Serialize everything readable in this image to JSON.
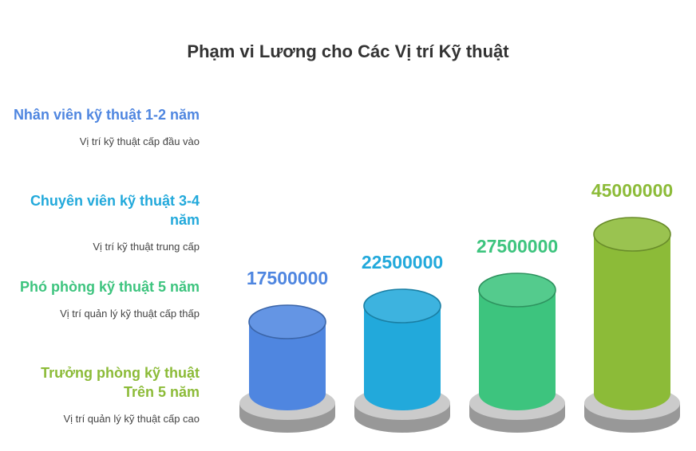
{
  "title": "Phạm vi Lương cho Các Vị trí Kỹ thuật",
  "positions": [
    {
      "name": "Nhân viên kỹ thuật 1-2 năm",
      "desc": "Vị trí kỹ thuật cấp đầu vào",
      "color": "#4F86E0"
    },
    {
      "name": "Chuyên viên kỹ thuật 3-4 năm",
      "desc": "Vị trí kỹ thuật trung cấp",
      "color": "#22A9DB"
    },
    {
      "name": "Phó phòng kỹ thuật 5 năm",
      "desc": "Vị trí quản lý kỹ thuật cấp thấp",
      "color": "#3DC47E"
    },
    {
      "name": "Trưởng phòng kỹ thuật Trên 5 năm",
      "desc": "Vị trí quản lý kỹ thuật cấp cao",
      "color": "#8CBB38"
    }
  ],
  "chart_data": {
    "type": "bar",
    "title": "Phạm vi Lương cho Các Vị trí Kỹ thuật",
    "categories": [
      "Nhân viên kỹ thuật 1-2 năm",
      "Chuyên viên kỹ thuật 3-4 năm",
      "Phó phòng kỹ thuật 5 năm",
      "Trưởng phòng kỹ thuật Trên 5 năm"
    ],
    "values": [
      17500000,
      22500000,
      27500000,
      45000000
    ],
    "value_labels": [
      "17500000",
      "22500000",
      "27500000",
      "45000000"
    ],
    "colors": [
      "#4F86E0",
      "#22A9DB",
      "#3DC47E",
      "#8CBB38"
    ],
    "pedestal_color": "#B9B9B9"
  }
}
